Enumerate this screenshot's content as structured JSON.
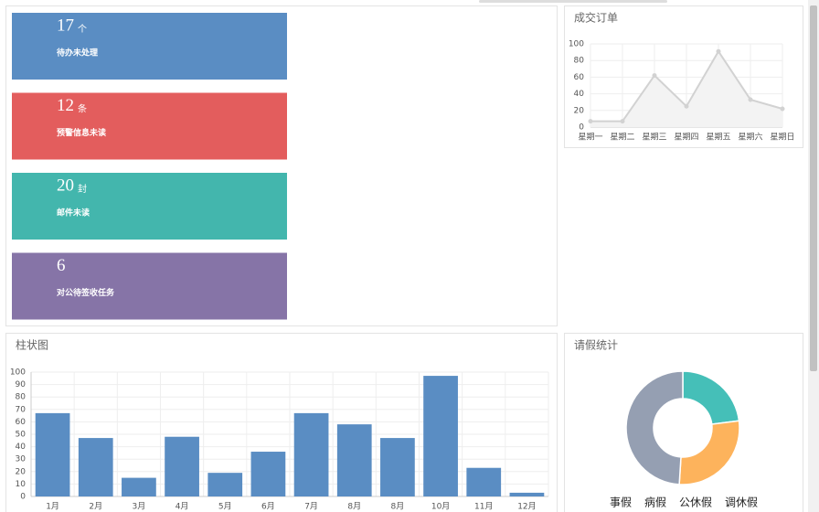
{
  "cards": [
    {
      "value": 17,
      "unit": "个",
      "label": "待办未处理",
      "color": "#5a8dc3"
    },
    {
      "value": 12,
      "unit": "条",
      "label": "预警信息未读",
      "color": "#e35d5d"
    },
    {
      "value": 20,
      "unit": "封",
      "label": "邮件未读",
      "color": "#43b6ad"
    },
    {
      "value": 6,
      "label": "对公待签收任务",
      "color": "#8674a7"
    }
  ],
  "chart_data": [
    {
      "type": "line",
      "title": "成交订单",
      "categories": [
        "星期一",
        "星期二",
        "星期三",
        "星期四",
        "星期五",
        "星期六",
        "星期日"
      ],
      "values": [
        7,
        7,
        62,
        25,
        91,
        33,
        22
      ],
      "color": "#d2d2d2",
      "ylim": [
        0,
        100
      ],
      "yticks": [
        0,
        20,
        40,
        60,
        80,
        100
      ],
      "grid": true
    },
    {
      "type": "bar",
      "title": "柱状图",
      "categories": [
        "1月",
        "2月",
        "3月",
        "4月",
        "5月",
        "6月",
        "7月",
        "8月",
        "8月",
        "10月",
        "11月",
        "12月"
      ],
      "values": [
        67,
        47,
        15,
        48,
        19,
        36,
        67,
        58,
        47,
        97,
        23,
        3
      ],
      "color": "#5a8dc3",
      "ylim": [
        0,
        100
      ],
      "yticks": [
        0,
        10,
        20,
        30,
        40,
        50,
        60,
        70,
        80,
        90,
        100
      ],
      "grid": true
    },
    {
      "type": "pie",
      "title": "请假统计",
      "categories": [
        "事假",
        "病假",
        "公休假",
        "调休假"
      ],
      "values": [
        23,
        28,
        49,
        0
      ],
      "colors": [
        "#45bfb8",
        "#fdb35c",
        "#959fb2",
        "#e35d5d"
      ]
    }
  ]
}
